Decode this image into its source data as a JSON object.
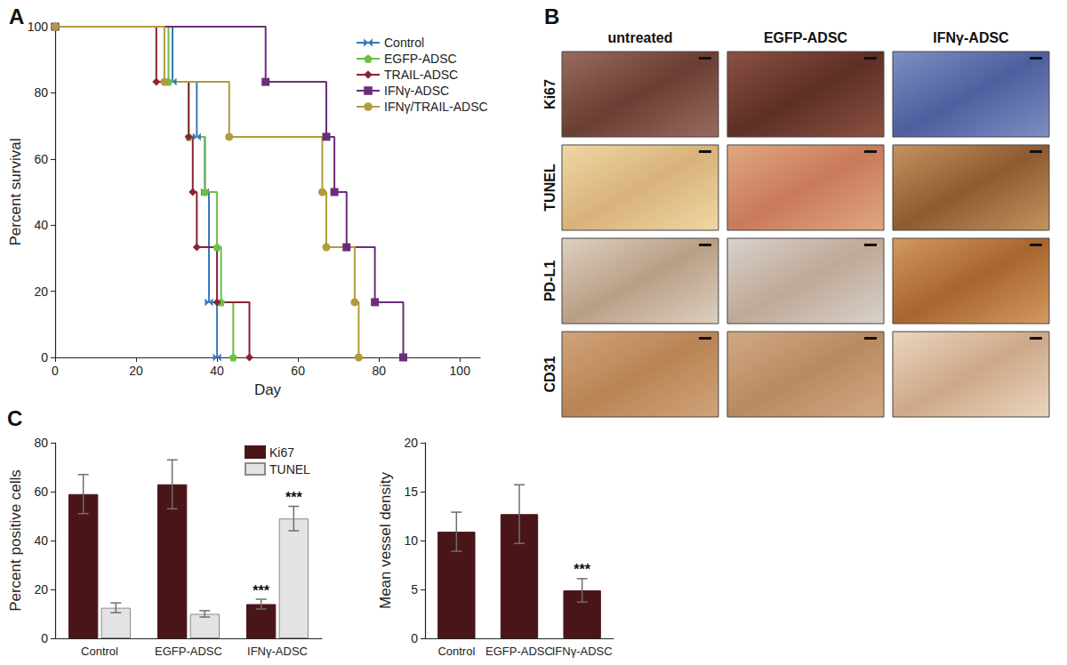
{
  "chart_data": [
    {
      "type": "line",
      "title": "A",
      "x_label": "Day",
      "y_label": "Percent survival",
      "xlim": [
        0,
        105
      ],
      "xticks": [
        0,
        20,
        40,
        60,
        80,
        100
      ],
      "ylim": [
        0,
        100
      ],
      "yticks": [
        0,
        20,
        40,
        60,
        80,
        100
      ],
      "legend": "top-right",
      "line_style": "step",
      "series": [
        {
          "name": "Control",
          "color": "#3a78b5",
          "marker": "bowtie",
          "x": [
            0,
            29,
            35,
            37,
            38,
            40
          ],
          "values": [
            100,
            83.3,
            66.7,
            50,
            16.7,
            0
          ]
        },
        {
          "name": "EGFP-ADSC",
          "color": "#6cbf47",
          "marker": "pentagon",
          "x": [
            0,
            28,
            33,
            37,
            40,
            41,
            44
          ],
          "values": [
            100,
            83.3,
            66.7,
            50,
            33.3,
            16.7,
            0
          ]
        },
        {
          "name": "TRAIL-ADSC",
          "color": "#8b2332",
          "marker": "diamond",
          "x": [
            0,
            25,
            33,
            34,
            35,
            40,
            48
          ],
          "values": [
            100,
            83.3,
            66.7,
            50,
            33.3,
            16.7,
            0
          ]
        },
        {
          "name": "IFNγ-ADSC",
          "color": "#6b2d7a",
          "marker": "square",
          "x": [
            0,
            52,
            67,
            69,
            72,
            79,
            86
          ],
          "values": [
            100,
            83.3,
            66.7,
            50,
            33.3,
            16.7,
            0
          ]
        },
        {
          "name": "IFNγ/TRAIL-ADSC",
          "color": "#b39a3c",
          "marker": "circle",
          "x": [
            0,
            27,
            43,
            66,
            67,
            74,
            75
          ],
          "values": [
            100,
            83.3,
            66.7,
            50,
            33.3,
            16.7,
            0
          ]
        }
      ]
    },
    {
      "type": "bar",
      "title": "C",
      "y_label": "Percent positive cells",
      "categories": [
        "Control",
        "EGFP-ADSC",
        "IFNγ-ADSC"
      ],
      "ylim": [
        0,
        80
      ],
      "yticks": [
        0,
        20,
        40,
        60,
        80
      ],
      "legend": "top-right",
      "series": [
        {
          "name": "Ki67",
          "color": "#4a1518",
          "values": [
            59,
            63,
            14
          ],
          "errors": [
            8,
            10,
            2
          ]
        },
        {
          "name": "TUNEL",
          "color": "#e3e3e3",
          "values": [
            12.5,
            10,
            49
          ],
          "errors": [
            2,
            1.3,
            5
          ]
        }
      ],
      "annotations": [
        {
          "text": "***",
          "category": "IFNγ-ADSC",
          "series": "Ki67"
        },
        {
          "text": "***",
          "category": "IFNγ-ADSC",
          "series": "TUNEL"
        }
      ]
    },
    {
      "type": "bar",
      "y_label": "Mean vessel density",
      "categories": [
        "Control",
        "EGFP-ADSC",
        "IFNγ-ADSC"
      ],
      "ylim": [
        0,
        20
      ],
      "yticks": [
        0,
        5,
        10,
        15,
        20
      ],
      "series": [
        {
          "name": "Mean vessel density",
          "color": "#4a1518",
          "values": [
            10.9,
            12.7,
            4.9
          ],
          "errors": [
            2,
            3,
            1.2
          ]
        }
      ],
      "annotations": [
        {
          "text": "***",
          "category": "IFNγ-ADSC",
          "series": "Mean vessel density"
        }
      ]
    }
  ],
  "image_panel": {
    "title": "B",
    "columns": [
      "untreated",
      "EGFP-ADSC",
      "IFNγ-ADSC"
    ],
    "rows": [
      "Ki67",
      "TUNEL",
      "PD-L1",
      "CD31"
    ]
  }
}
